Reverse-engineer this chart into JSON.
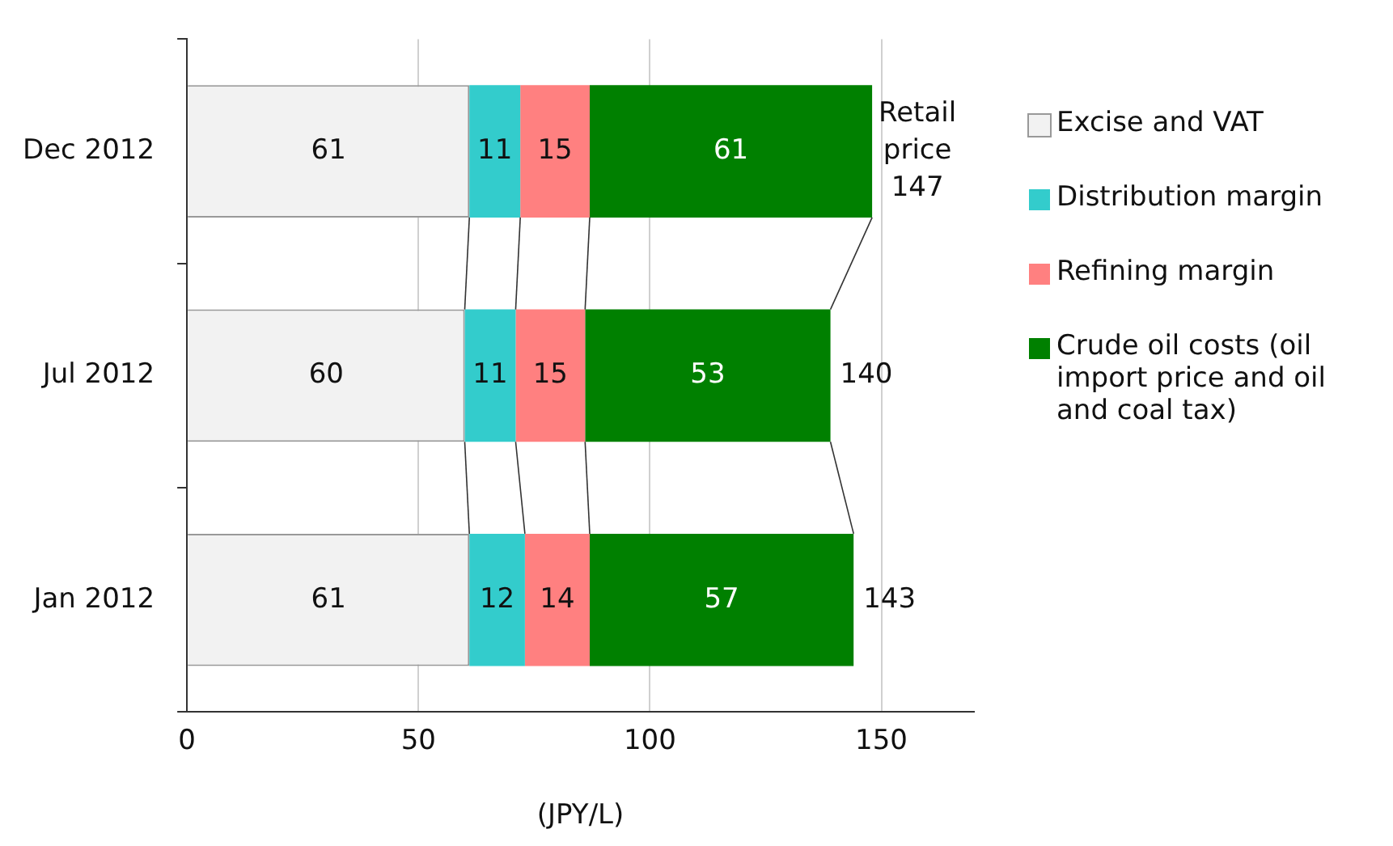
{
  "chart_data": {
    "type": "bar",
    "orientation": "horizontal",
    "stacked": true,
    "categories": [
      "Dec 2012",
      "Jul 2012",
      "Jan 2012"
    ],
    "series": [
      {
        "name": "Excise and VAT",
        "color": "#f2f2f2",
        "values": [
          61,
          60,
          61
        ]
      },
      {
        "name": "Distribution margin",
        "color": "#33cccc",
        "values": [
          11,
          11,
          12
        ]
      },
      {
        "name": "Refining margin",
        "color": "#ff8080",
        "values": [
          15,
          15,
          14
        ]
      },
      {
        "name": "Crude oil costs (oil import price and oil and coal tax)",
        "color": "#008000",
        "values": [
          61,
          53,
          57
        ]
      }
    ],
    "totals": [
      "Retail price 147",
      "140",
      "143"
    ],
    "data_labels": true,
    "xlim": [
      0,
      170
    ],
    "xticks": [
      0,
      50,
      100,
      150
    ],
    "xlabel": "(JPY/L)",
    "grid": "x",
    "legend": "right"
  }
}
